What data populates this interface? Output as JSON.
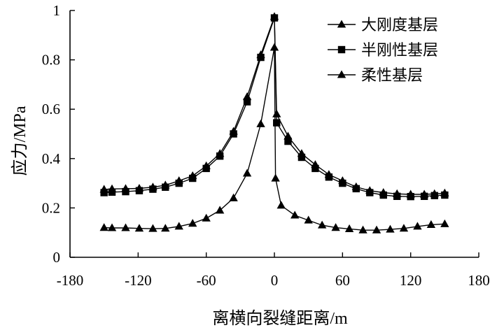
{
  "chart_data": {
    "type": "line",
    "xlabel": "离横向裂缝距离/m",
    "ylabel": "应力/MPa",
    "xlim": [
      -180,
      180
    ],
    "ylim": [
      0,
      1
    ],
    "xticks": [
      -180,
      -120,
      -60,
      0,
      60,
      120,
      180
    ],
    "yticks": [
      0,
      0.2,
      0.4,
      0.6,
      0.8,
      1
    ],
    "xtick_labels": [
      "-180",
      "-120",
      "-60",
      "0",
      "60",
      "120",
      "180"
    ],
    "ytick_labels": [
      "0",
      "0.2",
      "0.4",
      "0.6",
      "0.8",
      "1"
    ],
    "grid": false,
    "legend_position": "top-right",
    "series": [
      {
        "name": "大刚度基层",
        "marker": "triangle",
        "color": "#000000",
        "points": [
          [
            -150,
            0.275
          ],
          [
            -143,
            0.277
          ],
          [
            -131,
            0.278
          ],
          [
            -119,
            0.279
          ],
          [
            -107,
            0.284
          ],
          [
            -96,
            0.292
          ],
          [
            -84,
            0.31
          ],
          [
            -72,
            0.33
          ],
          [
            -60,
            0.37
          ],
          [
            -48,
            0.42
          ],
          [
            -36,
            0.51
          ],
          [
            -24,
            0.65
          ],
          [
            -12,
            0.82
          ],
          [
            0,
            0.975
          ],
          [
            2,
            0.58
          ],
          [
            12,
            0.49
          ],
          [
            24,
            0.42
          ],
          [
            36,
            0.375
          ],
          [
            48,
            0.335
          ],
          [
            60,
            0.31
          ],
          [
            72,
            0.285
          ],
          [
            84,
            0.27
          ],
          [
            96,
            0.262
          ],
          [
            108,
            0.257
          ],
          [
            120,
            0.255
          ],
          [
            132,
            0.255
          ],
          [
            141,
            0.257
          ],
          [
            150,
            0.26
          ]
        ]
      },
      {
        "name": "半刚性基层",
        "marker": "square",
        "color": "#000000",
        "points": [
          [
            -150,
            0.262
          ],
          [
            -143,
            0.264
          ],
          [
            -131,
            0.266
          ],
          [
            -119,
            0.27
          ],
          [
            -107,
            0.276
          ],
          [
            -96,
            0.284
          ],
          [
            -84,
            0.3
          ],
          [
            -72,
            0.32
          ],
          [
            -60,
            0.36
          ],
          [
            -48,
            0.41
          ],
          [
            -36,
            0.5
          ],
          [
            -24,
            0.63
          ],
          [
            -12,
            0.81
          ],
          [
            0,
            0.97
          ],
          [
            2,
            0.545
          ],
          [
            12,
            0.47
          ],
          [
            24,
            0.405
          ],
          [
            36,
            0.36
          ],
          [
            48,
            0.325
          ],
          [
            60,
            0.3
          ],
          [
            72,
            0.278
          ],
          [
            84,
            0.262
          ],
          [
            96,
            0.252
          ],
          [
            108,
            0.247
          ],
          [
            120,
            0.246
          ],
          [
            132,
            0.247
          ],
          [
            141,
            0.25
          ],
          [
            150,
            0.252
          ]
        ]
      },
      {
        "name": "柔性基层",
        "marker": "triangle",
        "color": "#000000",
        "points": [
          [
            -150,
            0.12
          ],
          [
            -143,
            0.119
          ],
          [
            -131,
            0.119
          ],
          [
            -119,
            0.117
          ],
          [
            -107,
            0.116
          ],
          [
            -96,
            0.117
          ],
          [
            -84,
            0.125
          ],
          [
            -72,
            0.137
          ],
          [
            -60,
            0.158
          ],
          [
            -48,
            0.19
          ],
          [
            -36,
            0.24
          ],
          [
            -24,
            0.34
          ],
          [
            -12,
            0.54
          ],
          [
            0,
            0.85
          ],
          [
            1,
            0.32
          ],
          [
            6,
            0.21
          ],
          [
            18,
            0.17
          ],
          [
            30,
            0.15
          ],
          [
            42,
            0.13
          ],
          [
            54,
            0.12
          ],
          [
            66,
            0.115
          ],
          [
            78,
            0.11
          ],
          [
            90,
            0.11
          ],
          [
            102,
            0.113
          ],
          [
            114,
            0.117
          ],
          [
            126,
            0.125
          ],
          [
            138,
            0.132
          ],
          [
            150,
            0.135
          ]
        ]
      }
    ]
  }
}
